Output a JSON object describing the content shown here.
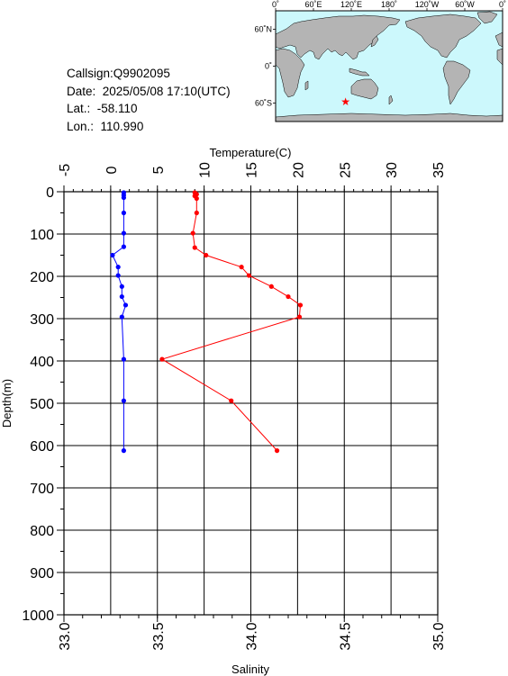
{
  "station": {
    "callsign": "Callsign:Q9902095",
    "date": "Date:  2025/05/08 17:10(UTC)",
    "lat": "Lat.:  -58.110",
    "lon": "Lon.:  110.990"
  },
  "map": {
    "top_labels": [
      "0˚",
      "60˚E",
      "120˚E",
      "180˚",
      "120˚W",
      "60˚W",
      "0˚"
    ],
    "left_labels": [
      "60˚N",
      "0˚",
      "60˚S"
    ],
    "ocean_color": "#ccf8fc",
    "land_color": "#b4b4b4",
    "marker": {
      "lon": 110.99,
      "lat": -58.11,
      "color": "#ff0000"
    }
  },
  "chart_data": {
    "type": "line",
    "title": "",
    "y_axis": {
      "label": "Depth(m)",
      "range": [
        0,
        1000
      ],
      "reversed": true,
      "ticks": [
        "0",
        "100",
        "200",
        "300",
        "400",
        "500",
        "600",
        "700",
        "800",
        "900",
        "1000"
      ]
    },
    "top_axis": {
      "label": "Temperature(C)",
      "range": [
        -5,
        35
      ],
      "ticks": [
        "-5",
        "0",
        "5",
        "10",
        "15",
        "20",
        "25",
        "30",
        "35"
      ]
    },
    "bottom_axis": {
      "label": "Salinity",
      "range": [
        33.0,
        35.0
      ],
      "ticks": [
        "33.0",
        "33.5",
        "34.0",
        "34.5",
        "35.0"
      ]
    },
    "grid": true,
    "series": [
      {
        "axis": "top",
        "color": "#ff0000",
        "points": [
          {
            "depth": 2,
            "value": 9.0
          },
          {
            "depth": 6,
            "value": 9.2
          },
          {
            "depth": 10,
            "value": 9.0
          },
          {
            "depth": 16,
            "value": 9.2
          },
          {
            "depth": 50,
            "value": 9.2
          },
          {
            "depth": 98,
            "value": 8.8
          },
          {
            "depth": 132,
            "value": 9.0
          },
          {
            "depth": 150,
            "value": 10.2
          },
          {
            "depth": 178,
            "value": 14.0
          },
          {
            "depth": 198,
            "value": 14.8
          },
          {
            "depth": 224,
            "value": 17.2
          },
          {
            "depth": 248,
            "value": 19.0
          },
          {
            "depth": 268,
            "value": 20.3
          },
          {
            "depth": 296,
            "value": 20.2
          },
          {
            "depth": 396,
            "value": 5.5
          },
          {
            "depth": 494,
            "value": 12.9
          },
          {
            "depth": 612,
            "value": 17.8
          }
        ]
      },
      {
        "axis": "bottom",
        "color": "#0000ff",
        "points": [
          {
            "depth": 2,
            "value": 33.32
          },
          {
            "depth": 8,
            "value": 33.32
          },
          {
            "depth": 14,
            "value": 33.32
          },
          {
            "depth": 50,
            "value": 33.32
          },
          {
            "depth": 98,
            "value": 33.32
          },
          {
            "depth": 130,
            "value": 33.32
          },
          {
            "depth": 150,
            "value": 33.26
          },
          {
            "depth": 178,
            "value": 33.29
          },
          {
            "depth": 198,
            "value": 33.29
          },
          {
            "depth": 224,
            "value": 33.31
          },
          {
            "depth": 248,
            "value": 33.31
          },
          {
            "depth": 268,
            "value": 33.33
          },
          {
            "depth": 296,
            "value": 33.31
          },
          {
            "depth": 396,
            "value": 33.32
          },
          {
            "depth": 494,
            "value": 33.32
          },
          {
            "depth": 612,
            "value": 33.32
          }
        ]
      }
    ]
  }
}
